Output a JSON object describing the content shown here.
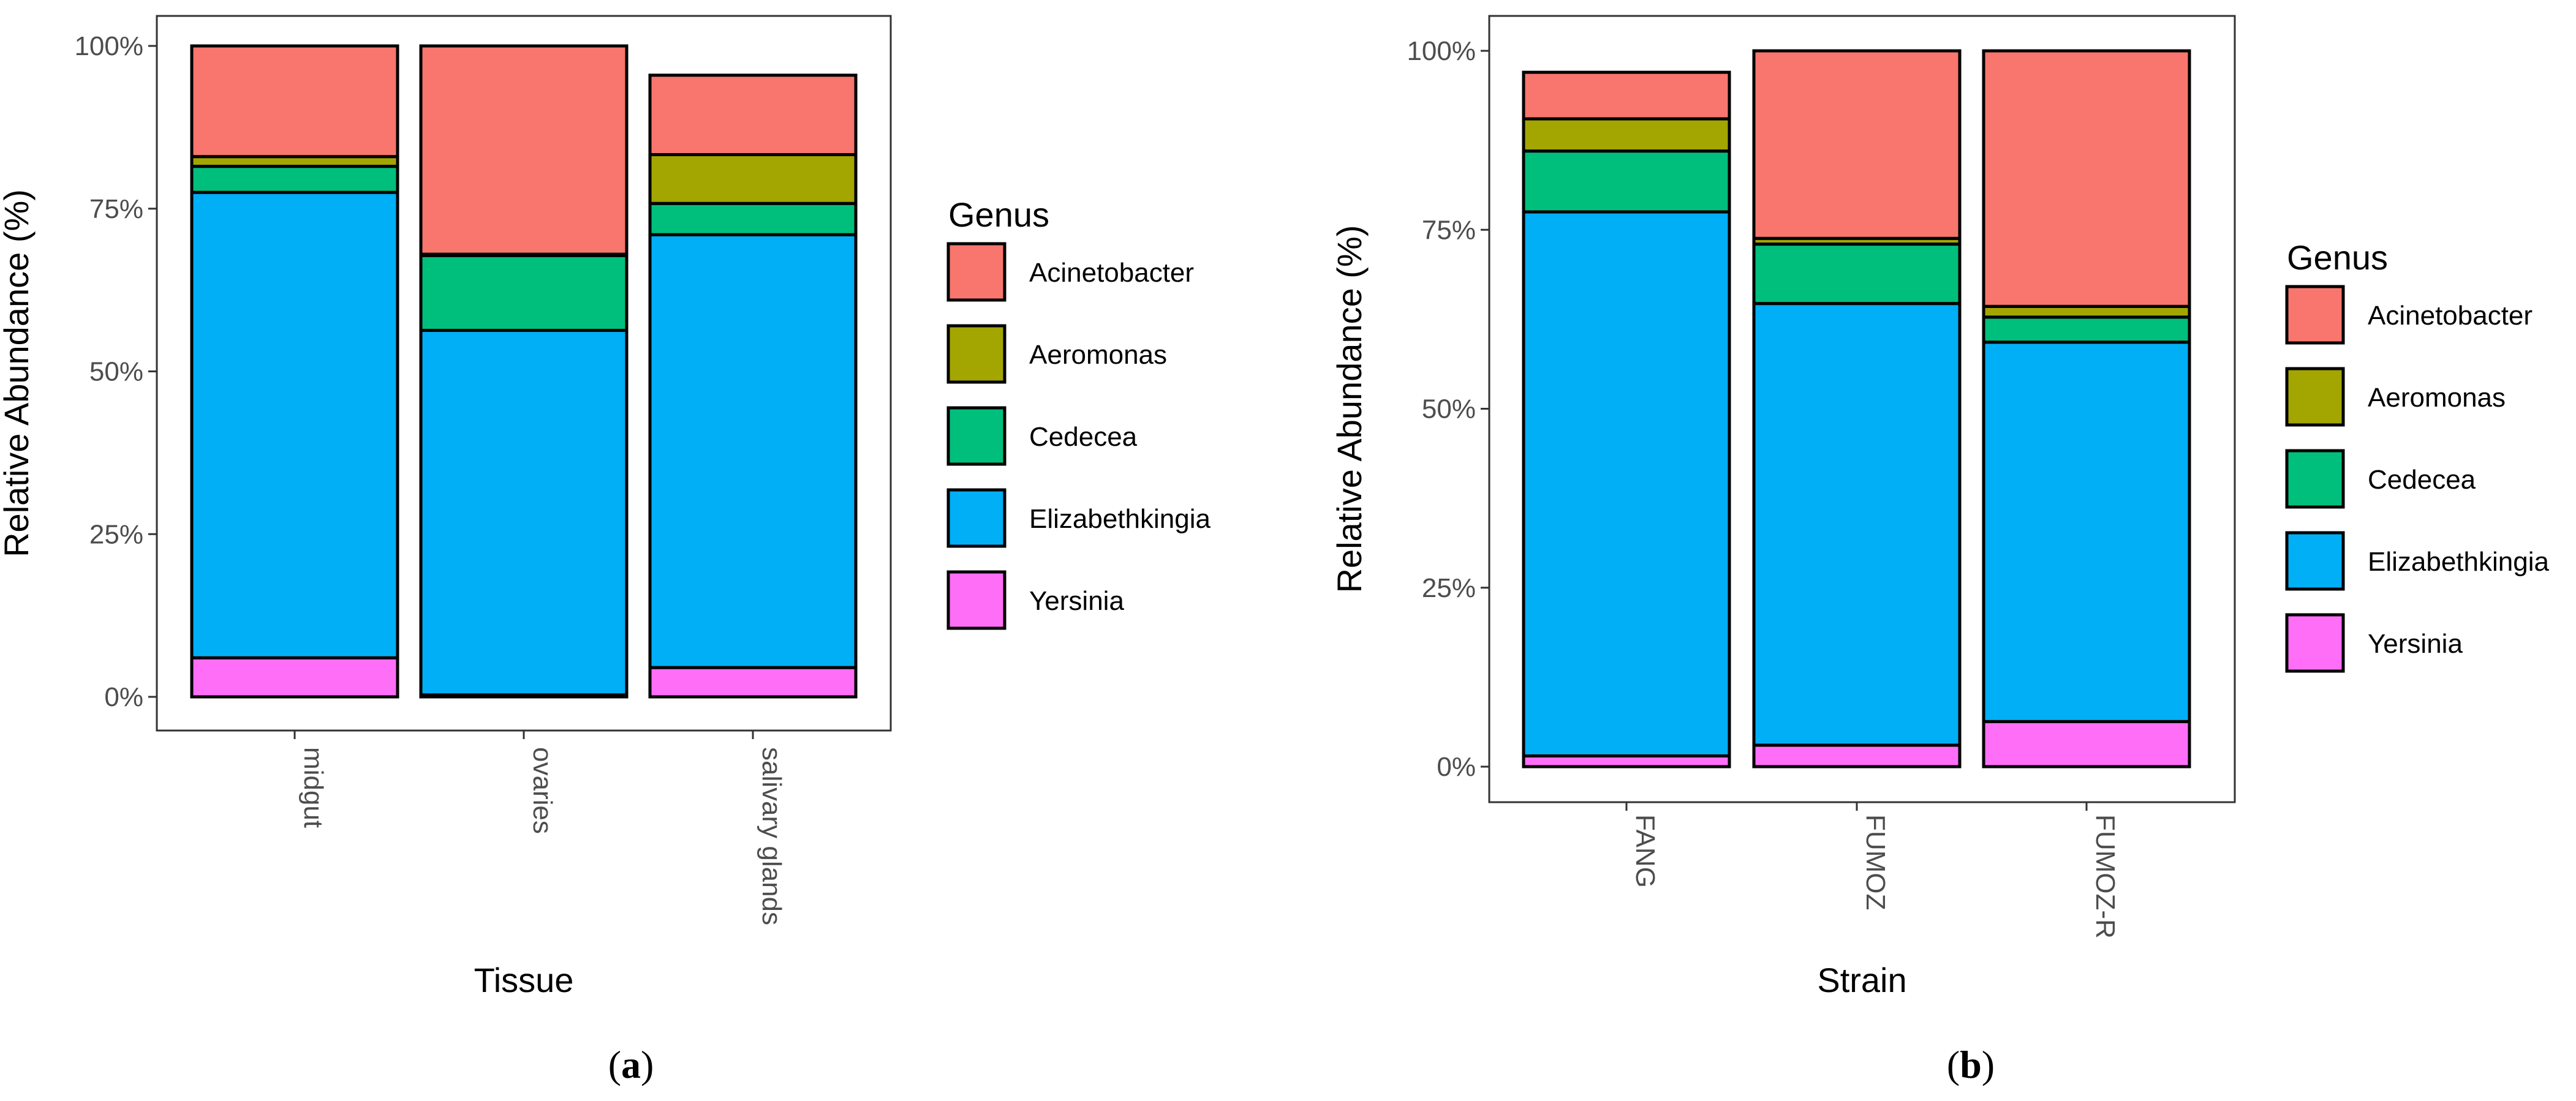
{
  "chart_data": [
    {
      "type": "bar",
      "stacked": true,
      "panel_label": "a",
      "xlabel": "Tissue",
      "ylabel": "Relative Abundance (%)",
      "ylim": [
        0,
        100
      ],
      "yticks": [
        "0%",
        "25%",
        "50%",
        "75%",
        "100%"
      ],
      "ytick_values": [
        0,
        25,
        50,
        75,
        100
      ],
      "categories": [
        "midgut",
        "ovaries",
        "salivary glands"
      ],
      "legend_title": "Genus",
      "series": [
        {
          "name": "Yersinia",
          "color": "#FF6EF7",
          "values": [
            6,
            0.3,
            4.5
          ]
        },
        {
          "name": "Elizabethkingia",
          "color": "#00AFF6",
          "values": [
            71.5,
            56,
            66.5
          ]
        },
        {
          "name": "Cedecea",
          "color": "#00BF7D",
          "values": [
            4,
            11.5,
            4.8
          ]
        },
        {
          "name": "Aeromonas",
          "color": "#A3A500",
          "values": [
            1.5,
            0.2,
            7.5
          ]
        },
        {
          "name": "Acinetobacter",
          "color": "#F8766D",
          "values": [
            17,
            32,
            12.2
          ]
        }
      ]
    },
    {
      "type": "bar",
      "stacked": true,
      "panel_label": "b",
      "xlabel": "Strain",
      "ylabel": "Relative Abundance (%)",
      "ylim": [
        0,
        100
      ],
      "yticks": [
        "0%",
        "25%",
        "50%",
        "75%",
        "100%"
      ],
      "ytick_values": [
        0,
        25,
        50,
        75,
        100
      ],
      "categories": [
        "FANG",
        "FUMOZ",
        "FUMOZ-R"
      ],
      "legend_title": "Genus",
      "series": [
        {
          "name": "Yersinia",
          "color": "#FF6EF7",
          "values": [
            1.5,
            3,
            6.3
          ]
        },
        {
          "name": "Elizabethkingia",
          "color": "#00AFF6",
          "values": [
            76,
            61.7,
            53
          ]
        },
        {
          "name": "Cedecea",
          "color": "#00BF7D",
          "values": [
            8.5,
            8.3,
            3.5
          ]
        },
        {
          "name": "Aeromonas",
          "color": "#A3A500",
          "values": [
            4.5,
            0.8,
            1.5
          ]
        },
        {
          "name": "Acinetobacter",
          "color": "#F8766D",
          "values": [
            6.5,
            26.2,
            35.7
          ]
        }
      ]
    }
  ]
}
